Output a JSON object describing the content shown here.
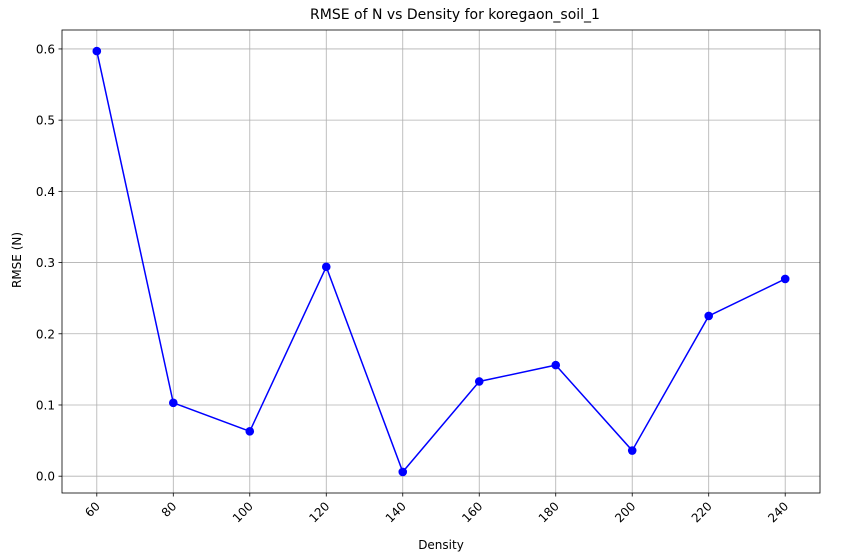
{
  "chart_data": {
    "type": "line",
    "title": "RMSE of N vs Density for koregaon_soil_1",
    "xlabel": "Density",
    "ylabel": "RMSE (N)",
    "x": [
      60,
      80,
      100,
      120,
      140,
      160,
      180,
      200,
      220,
      240
    ],
    "series": [
      {
        "values": [
          0.597,
          0.103,
          0.063,
          0.294,
          0.006,
          0.133,
          0.156,
          0.036,
          0.225,
          0.277
        ],
        "color": "#0000ff",
        "marker": "circle"
      }
    ],
    "xticks": [
      60,
      80,
      100,
      120,
      140,
      160,
      180,
      200,
      220,
      240
    ],
    "xtick_labels": [
      "60",
      "80",
      "100",
      "120",
      "140",
      "160",
      "180",
      "200",
      "220",
      "240"
    ],
    "yticks": [
      0.0,
      0.1,
      0.2,
      0.3,
      0.4,
      0.5,
      0.6
    ],
    "ytick_labels": [
      "0.0",
      "0.1",
      "0.2",
      "0.3",
      "0.4",
      "0.5",
      "0.6"
    ],
    "xlim": [
      50.9,
      249.1
    ],
    "ylim": [
      -0.0236,
      0.6266
    ],
    "grid": true,
    "xtick_rotation": "45 degrees"
  }
}
